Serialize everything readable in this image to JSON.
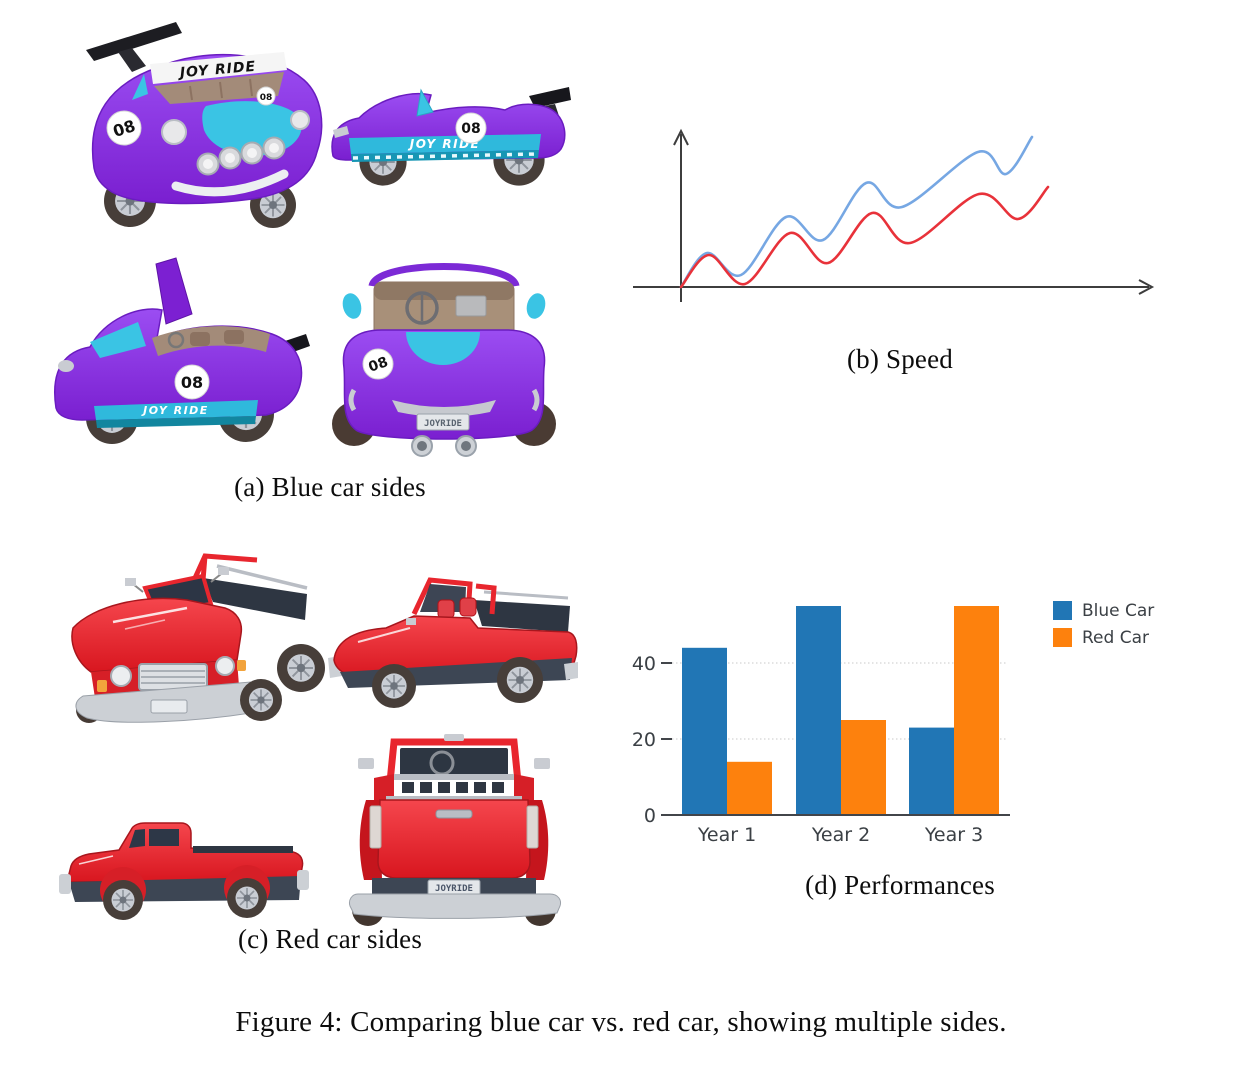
{
  "figure": {
    "caption": "Figure 4: Comparing blue car vs. red car, showing multiple sides.",
    "panels": {
      "a": {
        "caption": "(a) Blue car sides"
      },
      "b": {
        "caption": "(b) Speed"
      },
      "c": {
        "caption": "(c) Red car sides"
      },
      "d": {
        "caption": "(d) Performances"
      }
    }
  },
  "blue_car": {
    "racing_number": "08",
    "livery_text": "JOY RIDE",
    "plate_text": "JOYRIDE",
    "body_color": "#8a35e2",
    "accent_color": "#3ac4e4"
  },
  "red_car": {
    "plate_text": "JOYRIDE",
    "body_color": "#e8262e",
    "lower_color": "#3d4654"
  },
  "chart_data": [
    {
      "id": "speed",
      "type": "line",
      "title": "(b) Speed",
      "xlabel": "",
      "ylabel": "",
      "axis_style": "sketch axes with open arrowheads, no ticks, no tick labels",
      "axis_color": "#3d3d3d",
      "grid": "off",
      "legend": "none",
      "units": "relative drawing units, origin at axes intersection, y up",
      "series": [
        {
          "name": "blue car",
          "color": "#76a7e3",
          "points": [
            [
              0,
              0
            ],
            [
              26,
              34
            ],
            [
              60,
              12
            ],
            [
              105,
              70
            ],
            [
              142,
              47
            ],
            [
              185,
              104
            ],
            [
              221,
              80
            ],
            [
              297,
              135
            ],
            [
              325,
              113
            ],
            [
              351,
              150
            ]
          ]
        },
        {
          "name": "red car",
          "color": "#e8323a",
          "points": [
            [
              0,
              0
            ],
            [
              28,
              32
            ],
            [
              64,
              3
            ],
            [
              109,
              54
            ],
            [
              147,
              24
            ],
            [
              191,
              74
            ],
            [
              229,
              44
            ],
            [
              298,
              93
            ],
            [
              337,
              68
            ],
            [
              367,
              100
            ]
          ]
        }
      ]
    },
    {
      "id": "performances",
      "type": "bar",
      "title": "(d) Performances",
      "categories": [
        "Year 1",
        "Year 2",
        "Year 3"
      ],
      "series": [
        {
          "name": "Blue Car",
          "color": "#2176b5",
          "values": [
            44,
            55,
            23
          ]
        },
        {
          "name": "Red Car",
          "color": "#fd810d",
          "values": [
            14,
            25,
            55
          ]
        }
      ],
      "yticks": [
        0,
        20,
        40
      ],
      "ylim": [
        0,
        57
      ],
      "grid": "faint dotted horizontal gridlines at 20 and 40",
      "legend_position": "outside top-right",
      "tick_color": "#3b4045"
    }
  ]
}
